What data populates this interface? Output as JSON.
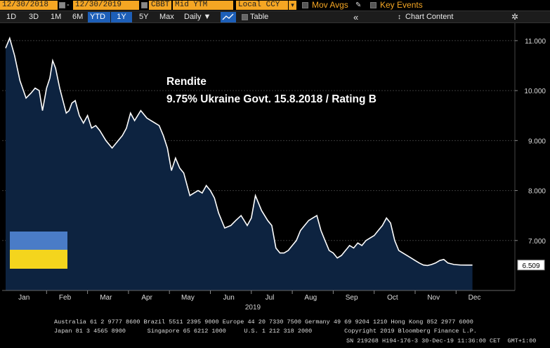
{
  "toolbar": {
    "start_date": "12/30/2018",
    "dash": "-",
    "end_date": "12/30/2019",
    "ticker_field": "CBBT",
    "measure_field": "Mid YTM",
    "currency_field": "Local CCY",
    "mov_avgs_label": "Mov Avgs",
    "key_events_label": "Key Events",
    "dropdown_glyph": "▾",
    "pencil_glyph": "✎"
  },
  "range_bar": {
    "buttons": [
      "1D",
      "3D",
      "1M",
      "6M",
      "YTD",
      "1Y",
      "5Y",
      "Max"
    ],
    "active": [
      "YTD",
      "1Y"
    ],
    "frequency_label": "Daily ▼",
    "chart_type_icon": "line-chart-icon",
    "table_label": "Table",
    "collapse_glyph": "«",
    "chart_content_label": "Chart Content",
    "chart_content_glyph": "↕",
    "settings_glyph": "✲"
  },
  "annotation": {
    "line1": "Rendite",
    "line2": "9.75% Ukraine Govt. 15.8.2018 / Rating B"
  },
  "flag": {
    "top_color": "#4a7cc7",
    "bottom_color": "#f4d51d"
  },
  "chart_data": {
    "type": "area",
    "year_label": "2019",
    "x_tick_labels": [
      "Jan",
      "Feb",
      "Mar",
      "Apr",
      "May",
      "Jun",
      "Jul",
      "Aug",
      "Sep",
      "Oct",
      "Nov",
      "Dec"
    ],
    "y_tick_labels": [
      "11.000",
      "10.000",
      "9.000",
      "8.000",
      "7.000"
    ],
    "y_ticks": [
      11,
      10,
      9,
      8,
      7
    ],
    "ylim": [
      6.0,
      11.35
    ],
    "last_value_label": "6.509",
    "last_value": 6.509,
    "line_color": "#ffffff",
    "fill_color": "#0d2340",
    "grid": true,
    "series_month_index": [
      0,
      0.1,
      0.22,
      0.35,
      0.5,
      0.62,
      0.72,
      0.82,
      0.9,
      1.0,
      1.08,
      1.15,
      1.22,
      1.32,
      1.4,
      1.48,
      1.55,
      1.62,
      1.7,
      1.8,
      1.9,
      2.0,
      2.1,
      2.2,
      2.3,
      2.45,
      2.6,
      2.75,
      2.85,
      2.95,
      3.05,
      3.15,
      3.3,
      3.45,
      3.55,
      3.65,
      3.75,
      3.85,
      3.95,
      4.05,
      4.15,
      4.25,
      4.35,
      4.5,
      4.6,
      4.7,
      4.8,
      4.9,
      5.0,
      5.1,
      5.2,
      5.35,
      5.5,
      5.62,
      5.75,
      5.9,
      6.0,
      6.1,
      6.25,
      6.4,
      6.5,
      6.6,
      6.7,
      6.8,
      6.9,
      7.0,
      7.1,
      7.2,
      7.3,
      7.4,
      7.5,
      7.6,
      7.7,
      7.8,
      7.9,
      8.0,
      8.1,
      8.2,
      8.3,
      8.4,
      8.5,
      8.6,
      8.7,
      8.8,
      8.9,
      9.0,
      9.1,
      9.2,
      9.3,
      9.4,
      9.5,
      9.6,
      9.7,
      9.8,
      9.9,
      10.0,
      10.1,
      10.2,
      10.3,
      10.4,
      10.5,
      10.6,
      10.7,
      10.8,
      10.95,
      11.1,
      11.25,
      11.4
    ],
    "series_values": [
      10.85,
      11.05,
      10.7,
      10.2,
      9.85,
      9.95,
      10.05,
      10.0,
      9.6,
      10.05,
      10.25,
      10.6,
      10.45,
      10.05,
      9.8,
      9.55,
      9.6,
      9.75,
      9.8,
      9.5,
      9.35,
      9.5,
      9.25,
      9.3,
      9.2,
      9.0,
      8.85,
      9.0,
      9.1,
      9.25,
      9.55,
      9.4,
      9.6,
      9.45,
      9.4,
      9.35,
      9.3,
      9.1,
      8.85,
      8.4,
      8.65,
      8.45,
      8.35,
      7.9,
      7.95,
      8.0,
      7.95,
      8.1,
      8.0,
      7.85,
      7.55,
      7.25,
      7.3,
      7.4,
      7.5,
      7.3,
      7.45,
      7.9,
      7.6,
      7.4,
      7.3,
      6.85,
      6.75,
      6.75,
      6.8,
      6.9,
      7.0,
      7.2,
      7.3,
      7.4,
      7.45,
      7.5,
      7.2,
      7.0,
      6.8,
      6.75,
      6.65,
      6.7,
      6.8,
      6.9,
      6.85,
      6.95,
      6.9,
      7.0,
      7.05,
      7.1,
      7.2,
      7.3,
      7.45,
      7.35,
      7.0,
      6.8,
      6.75,
      6.7,
      6.65,
      6.6,
      6.55,
      6.51,
      6.5,
      6.52,
      6.55,
      6.6,
      6.62,
      6.55,
      6.52,
      6.51,
      6.509,
      6.509
    ]
  },
  "footer": {
    "line1": "Australia 61 2 9777 8600 Brazil 5511 2395 9000 Europe 44 20 7330 7500 Germany 49 69 9204 1210 Hong Kong 852 2977 6000",
    "line2": "Japan 81 3 4565 8900      Singapore 65 6212 1000     U.S. 1 212 318 2000         Copyright 2019 Bloomberg Finance L.P.",
    "line3": "SN 219268 H194-176-3 30-Dec-19 11:36:00 CET  GMT+1:00"
  }
}
